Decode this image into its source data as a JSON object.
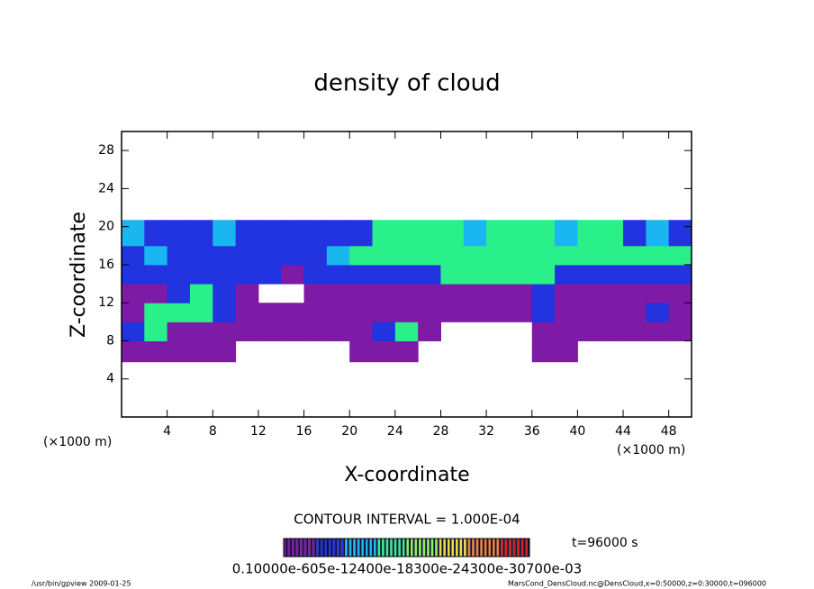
{
  "chart_data": {
    "type": "heatmap",
    "title": "density of cloud",
    "x_label": "X-coordinate",
    "y_label": "Z-coordinate",
    "x_unit": "(×1000 m)",
    "y_unit": "(×1000 m)",
    "xlim": [
      0,
      50
    ],
    "ylim": [
      0,
      30
    ],
    "xticks": [
      4,
      8,
      12,
      16,
      20,
      24,
      28,
      32,
      36,
      40,
      44,
      48
    ],
    "yticks": [
      4,
      8,
      12,
      16,
      20,
      24,
      28
    ],
    "x_bins": [
      0,
      2,
      4,
      6,
      8,
      10,
      12,
      14,
      16,
      18,
      20,
      22,
      24,
      26,
      28,
      30,
      32,
      34,
      36,
      38,
      40,
      42,
      44,
      46,
      48,
      50
    ],
    "z_bins": [
      5.8,
      8,
      10,
      12,
      14,
      16,
      18,
      20.7
    ],
    "values": [
      [
        0.0001,
        0.0001,
        0.0001,
        0.0001,
        0.0001,
        null,
        null,
        null,
        null,
        null,
        0.0001,
        0.0001,
        0.0001,
        null,
        null,
        null,
        null,
        null,
        0.0001,
        0.0001,
        null,
        null,
        null,
        null,
        null
      ],
      [
        0.0002,
        0.0004,
        0.0001,
        0.0001,
        0.0001,
        0.0001,
        0.0001,
        0.0001,
        0.0001,
        0.0001,
        0.0001,
        0.0002,
        0.0004,
        0.0001,
        null,
        null,
        null,
        null,
        0.0001,
        0.0001,
        0.0001,
        0.0001,
        0.0001,
        0.0001,
        0.0001
      ],
      [
        0.0001,
        0.0004,
        0.0004,
        0.0004,
        0.0002,
        0.0001,
        0.0001,
        0.0001,
        0.0001,
        0.0001,
        0.0001,
        0.0001,
        0.0001,
        0.0001,
        0.0001,
        0.0001,
        0.0001,
        0.0001,
        0.0002,
        0.0001,
        0.0001,
        0.0001,
        0.0001,
        0.0002,
        0.0001
      ],
      [
        0.0001,
        0.0001,
        0.0002,
        0.0004,
        0.0002,
        0.0001,
        null,
        null,
        0.0001,
        0.0001,
        0.0001,
        0.0001,
        0.0001,
        0.0001,
        0.0001,
        0.0001,
        0.0001,
        0.0001,
        0.0002,
        0.0001,
        0.0001,
        0.0001,
        0.0001,
        0.0001,
        0.0001
      ],
      [
        0.0002,
        0.0002,
        0.0002,
        0.0002,
        0.0002,
        0.0002,
        0.0002,
        0.0001,
        0.0002,
        0.0002,
        0.0002,
        0.0002,
        0.0002,
        0.0002,
        0.0004,
        0.0004,
        0.0004,
        0.0004,
        0.0004,
        0.0002,
        0.0002,
        0.0002,
        0.0002,
        0.0002,
        0.0002
      ],
      [
        0.0002,
        0.0003,
        0.0002,
        0.0002,
        0.0002,
        0.0002,
        0.0002,
        0.0002,
        0.0002,
        0.0003,
        0.0004,
        0.0004,
        0.0004,
        0.0004,
        0.0004,
        0.0004,
        0.0004,
        0.0004,
        0.0004,
        0.0004,
        0.0004,
        0.0004,
        0.0004,
        0.0004,
        0.0004
      ],
      [
        0.0003,
        0.0002,
        0.0002,
        0.0002,
        0.0003,
        0.0002,
        0.0002,
        0.0002,
        0.0002,
        0.0002,
        0.0002,
        0.0004,
        0.0004,
        0.0004,
        0.0004,
        0.0003,
        0.0004,
        0.0004,
        0.0004,
        0.0003,
        0.0004,
        0.0004,
        0.0002,
        0.0003,
        0.0002
      ]
    ],
    "clim": [
      0.0001,
      0.0008
    ],
    "colormap": [
      "#7d1aa6",
      "#2233e0",
      "#19b6f0",
      "#2af08a",
      "#8cf060",
      "#e8e040",
      "#f08030",
      "#d02020"
    ],
    "contour_interval": "CONTOUR INTERVAL = 1.000E-04",
    "time": "t=96000 s",
    "colorbar_labels": "0.10000e-605e-12400e-18300e-24300e-30700e-03"
  },
  "footer": {
    "left": "/usr/bin/gpview   2009-01-25",
    "right": "MarsCond_DensCloud.nc@DensCloud,x=0:50000,z=0:30000,t=096000"
  }
}
